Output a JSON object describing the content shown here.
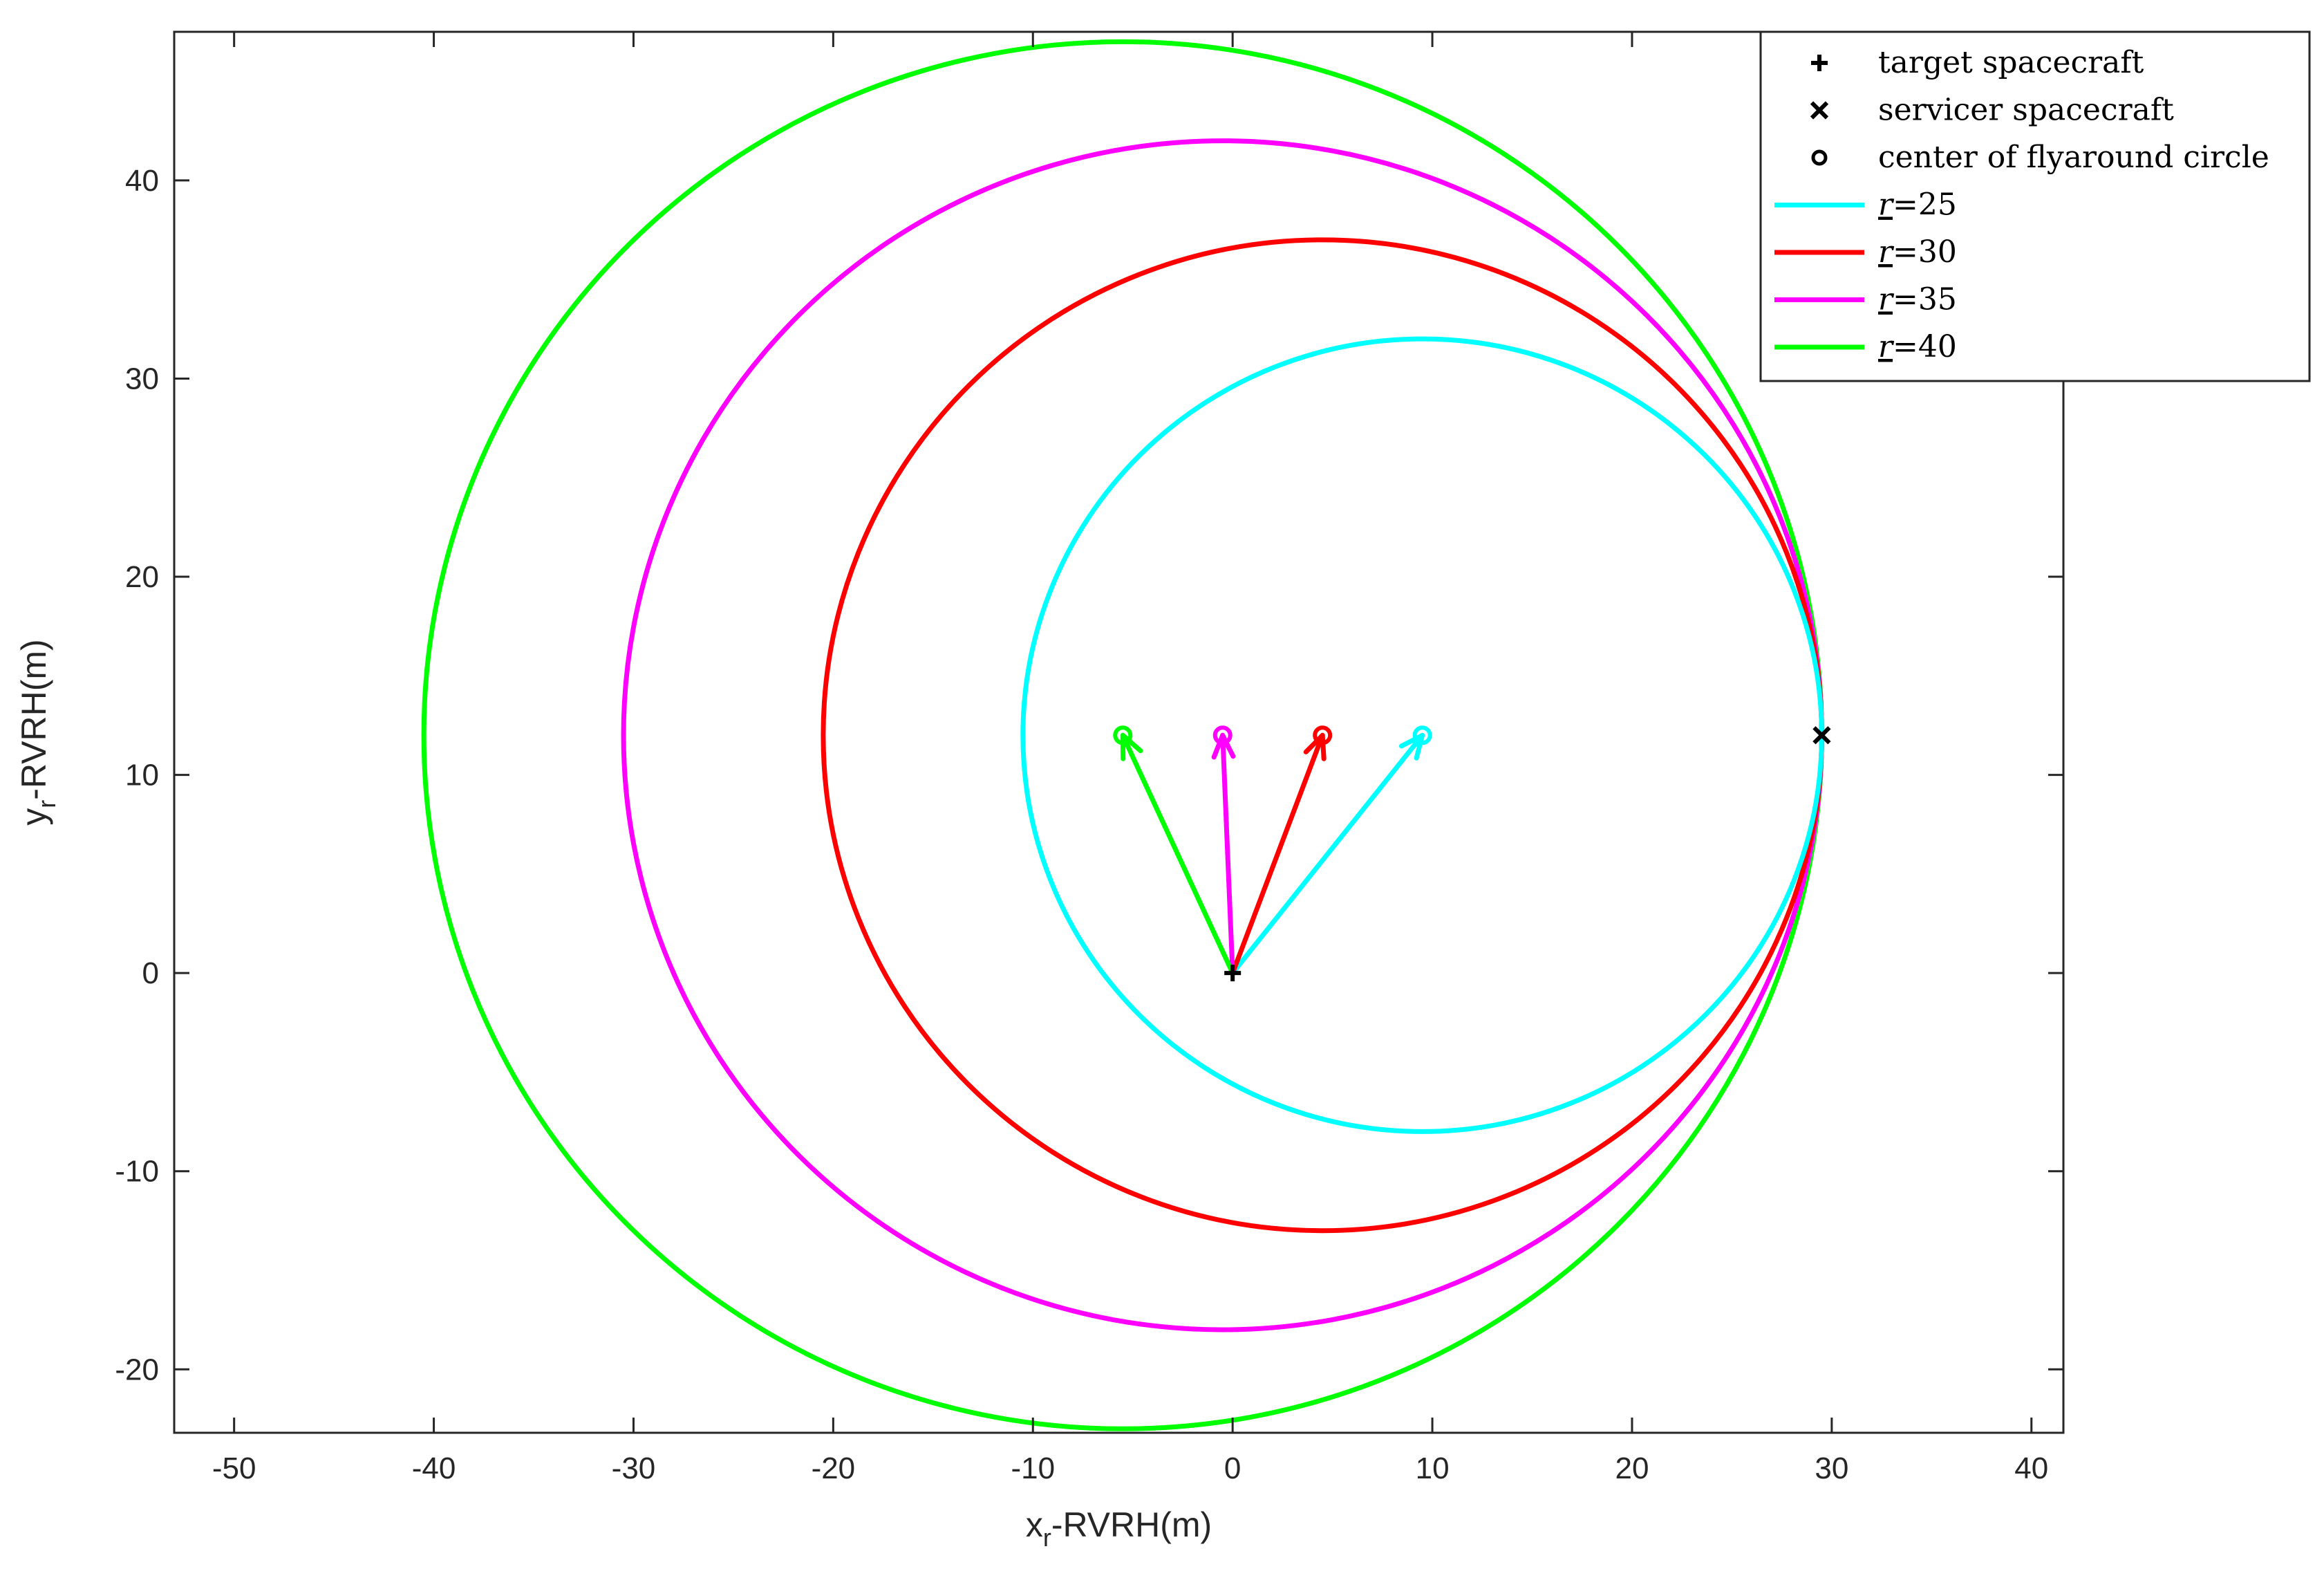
{
  "chart_data": {
    "type": "line",
    "title": "",
    "xlabel": {
      "main": "x",
      "sub": "r",
      "rest": "-RVRH(m)"
    },
    "ylabel": {
      "main": "y",
      "sub": "r",
      "rest": "-RVRH(m)"
    },
    "xlim": [
      -53,
      41.6
    ],
    "ylim": [
      -23.2,
      47.5
    ],
    "xticks": [
      -50,
      -40,
      -30,
      -20,
      -10,
      0,
      10,
      20,
      30,
      40
    ],
    "yticks": [
      -20,
      -10,
      0,
      10,
      20,
      30,
      40
    ],
    "grid": false,
    "legend_position": "top-right",
    "target": {
      "label": "target spacecraft",
      "x": 0,
      "y": 0,
      "marker": "plus"
    },
    "servicer": {
      "label": "servicer spacecraft",
      "x": 29.5,
      "y": 12,
      "marker": "x"
    },
    "center_legend_label": "center of flyaround circle",
    "series": [
      {
        "name": "r=25",
        "label_var": "r",
        "label_eq": "=25",
        "color": "#00ffff",
        "center": [
          9.5,
          12
        ],
        "radius": 20
      },
      {
        "name": "r=30",
        "label_var": "r",
        "label_eq": "=30",
        "color": "#ff0000",
        "center": [
          4.5,
          12
        ],
        "radius": 25
      },
      {
        "name": "r=35",
        "label_var": "r",
        "label_eq": "=35",
        "color": "#ff00ff",
        "center": [
          -0.5,
          12
        ],
        "radius": 30
      },
      {
        "name": "r=40",
        "label_var": "r",
        "label_eq": "=40",
        "color": "#00ff00",
        "center": [
          -5.5,
          12
        ],
        "radius": 35
      }
    ]
  }
}
